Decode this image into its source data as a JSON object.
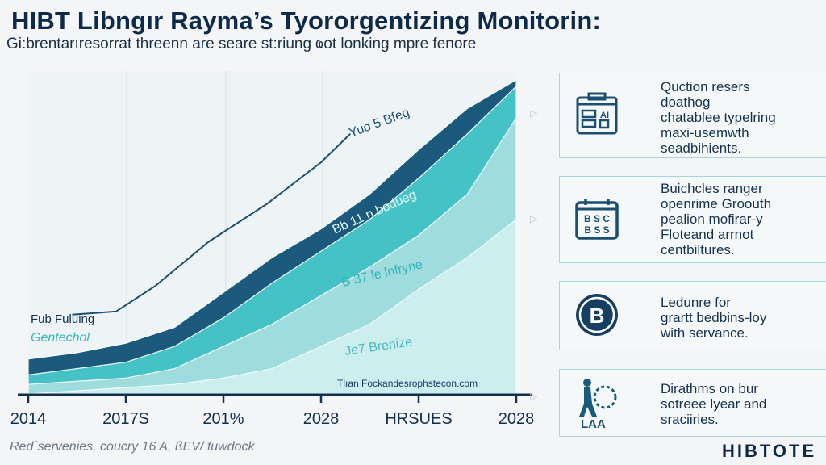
{
  "header": {
    "title": "HIBT Libngır Rayma’s Tyororgentizing Monitorin:",
    "subtitle": "Gi:brentarıresorrat threenn are seare st:riung ҩot lonking mpre fenore"
  },
  "chart_data": {
    "type": "area",
    "stacked": false,
    "x_tick_labels": [
      "2014",
      "2017S",
      "201%",
      "2028",
      "HRSUES",
      "2028"
    ],
    "x": [
      0,
      1,
      2,
      3,
      4,
      5,
      6,
      7,
      8,
      9,
      10
    ],
    "ylim": [
      0,
      100
    ],
    "grid": "vertical lines",
    "series": [
      {
        "values": [
          11,
          13,
          16,
          21,
          32,
          43,
          52,
          63,
          77,
          90,
          99
        ],
        "color": "#1b5a7c"
      },
      {
        "values": [
          6,
          8,
          10,
          15,
          24,
          35,
          45,
          55,
          68,
          82,
          97
        ],
        "color": "#45c2c6"
      },
      {
        "values": [
          3,
          4,
          5,
          8,
          15,
          22,
          31,
          40,
          50,
          63,
          87
        ],
        "color": "#9fdcdd"
      },
      {
        "values": [
          0,
          1,
          2,
          3,
          5,
          8,
          15,
          22,
          33,
          43,
          55
        ],
        "color": "#cdeeee"
      }
    ],
    "line_series": {
      "points": [
        [
          0.9,
          25
        ],
        [
          1.8,
          26
        ],
        [
          2.6,
          34
        ],
        [
          3.7,
          48
        ],
        [
          4.9,
          60
        ],
        [
          6.0,
          73
        ],
        [
          6.6,
          82
        ]
      ],
      "color": "#1b4f72"
    },
    "annotations": {
      "line_label": "Yuo 5 Bfeg",
      "band_label_1": "Bb 11 n bodueg",
      "band_label_2": "B 37 le lnfryne",
      "band_label_3": "Je7 Brenize",
      "legend_1": "Fub Fuluing",
      "legend_2": "Gentechol",
      "source": "Tlıan Fockandesrophstecon.com"
    }
  },
  "cards": [
    {
      "icon": "calendar-grid-icon",
      "text": "Quction resers\ndoathog\nchatablee typelring\nmaxi-usemwth\nseadbihients."
    },
    {
      "icon": "calendar-abc-icon",
      "text": "Buichcles ranger\nopenrime Groouth\npealion mofirar-y\nFloteand arrnot\ncentbiltures."
    },
    {
      "icon": "b-coin-icon",
      "text": "Ledunre for\ngrartt bedbins-loy\nwith servance."
    },
    {
      "icon": "person-gear-icon",
      "text": "Dirathms on bur\nsotreee lyear and\nsraciiries."
    }
  ],
  "card_icon_text": {
    "calendar_grid": "AI",
    "abc": [
      "B S C",
      "B S S"
    ],
    "coin": "B",
    "person": "LAA"
  },
  "footer": "Red´servenies, coucry 16 A, ßEV/ fuwdock",
  "logo": "HIBTOTE",
  "colors": {
    "navy": "#0f2a47",
    "teal": "#45c2c6",
    "dark_teal": "#1b5a7c",
    "card_border": "#a9d5dc"
  }
}
